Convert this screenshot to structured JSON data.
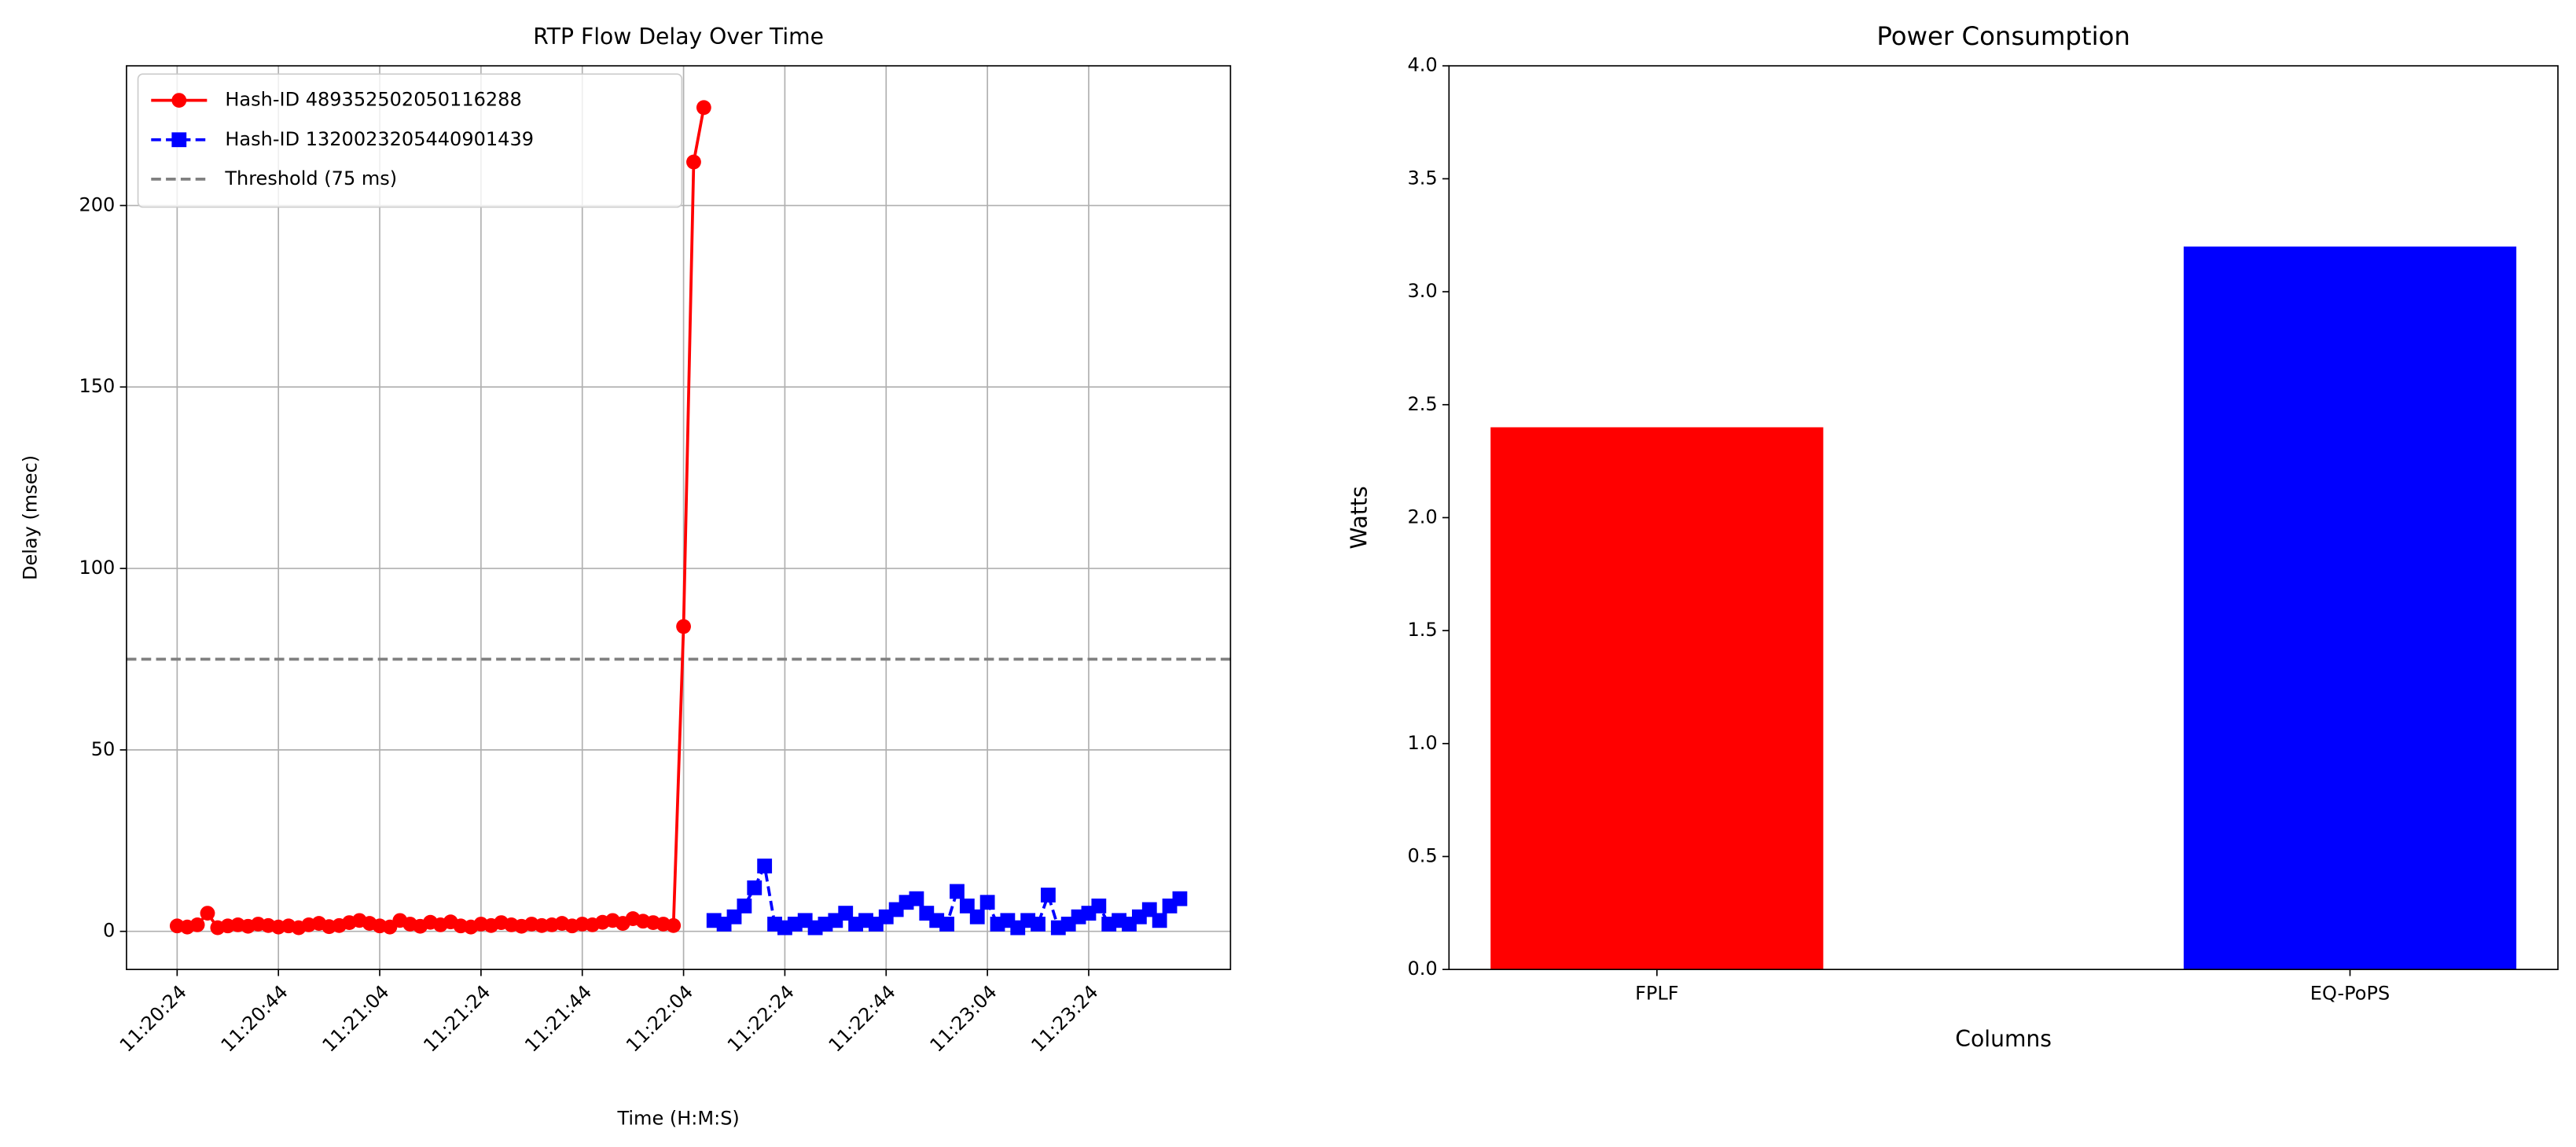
{
  "chart_data": [
    {
      "type": "line",
      "title": "RTP Flow Delay Over Time",
      "xlabel": "Time (H:M:S)",
      "ylabel": "Delay (msec)",
      "series": [
        {
          "name": "Hash-ID 489352502050116288",
          "color": "#ff0000",
          "marker": "circle",
          "linestyle": "solid",
          "x": [
            "11:20:24",
            "11:20:26",
            "11:20:28",
            "11:20:30",
            "11:20:32",
            "11:20:34",
            "11:20:36",
            "11:20:38",
            "11:20:40",
            "11:20:42",
            "11:20:44",
            "11:20:46",
            "11:20:48",
            "11:20:50",
            "11:20:52",
            "11:20:54",
            "11:20:56",
            "11:20:58",
            "11:21:00",
            "11:21:02",
            "11:21:04",
            "11:21:06",
            "11:21:08",
            "11:21:10",
            "11:21:12",
            "11:21:14",
            "11:21:16",
            "11:21:18",
            "11:21:20",
            "11:21:22",
            "11:21:24",
            "11:21:26",
            "11:21:28",
            "11:21:30",
            "11:21:32",
            "11:21:34",
            "11:21:36",
            "11:21:38",
            "11:21:40",
            "11:21:42",
            "11:21:44",
            "11:21:46",
            "11:21:48",
            "11:21:50",
            "11:21:52",
            "11:21:54",
            "11:21:56",
            "11:21:58",
            "11:22:00",
            "11:22:02",
            "11:22:04",
            "11:22:06",
            "11:22:08"
          ],
          "values": [
            1.5,
            1.2,
            1.8,
            5.0,
            1.0,
            1.5,
            1.8,
            1.4,
            2.0,
            1.6,
            1.2,
            1.5,
            1.0,
            1.8,
            2.2,
            1.3,
            1.6,
            2.4,
            3.0,
            2.2,
            1.5,
            1.2,
            3.0,
            2.0,
            1.4,
            2.5,
            1.8,
            2.6,
            1.5,
            1.2,
            2.0,
            1.6,
            2.4,
            1.8,
            1.4,
            2.0,
            1.6,
            1.8,
            2.2,
            1.5,
            2.0,
            1.8,
            2.5,
            3.0,
            2.2,
            3.5,
            2.8,
            2.4,
            2.0,
            1.6,
            84,
            212,
            227
          ]
        },
        {
          "name": "Hash-ID 1320023205440901439",
          "color": "#0000ff",
          "marker": "square",
          "linestyle": "dashed",
          "x": [
            "11:22:10",
            "11:22:12",
            "11:22:14",
            "11:22:16",
            "11:22:18",
            "11:22:20",
            "11:22:22",
            "11:22:24",
            "11:22:26",
            "11:22:28",
            "11:22:30",
            "11:22:32",
            "11:22:34",
            "11:22:36",
            "11:22:38",
            "11:22:40",
            "11:22:42",
            "11:22:44",
            "11:22:46",
            "11:22:48",
            "11:22:50",
            "11:22:52",
            "11:22:54",
            "11:22:56",
            "11:22:58",
            "11:23:00",
            "11:23:02",
            "11:23:04",
            "11:23:06",
            "11:23:08",
            "11:23:10",
            "11:23:12",
            "11:23:14",
            "11:23:16",
            "11:23:18",
            "11:23:20",
            "11:23:22",
            "11:23:24",
            "11:23:26",
            "11:23:28",
            "11:23:30",
            "11:23:32",
            "11:23:34",
            "11:23:36",
            "11:23:38",
            "11:23:40",
            "11:23:42"
          ],
          "values": [
            3,
            2,
            4,
            7,
            12,
            18,
            2,
            1,
            2,
            3,
            1,
            2,
            3,
            5,
            2,
            3,
            2,
            4,
            6,
            8,
            9,
            5,
            3,
            2,
            11,
            7,
            4,
            8,
            2,
            3,
            1,
            3,
            2,
            10,
            1,
            2,
            4,
            5,
            7,
            2,
            3,
            2,
            4,
            6,
            3,
            7,
            9
          ]
        }
      ],
      "threshold": {
        "value": 75,
        "label": "Threshold (75 ms)",
        "color": "#808080"
      },
      "xlim": [
        "11:20:14",
        "11:23:52"
      ],
      "xticks": [
        "11:20:24",
        "11:20:44",
        "11:21:04",
        "11:21:24",
        "11:21:44",
        "11:22:04",
        "11:22:24",
        "11:22:44",
        "11:23:04",
        "11:23:24"
      ],
      "ylim": [
        -10.5,
        238.5
      ],
      "yticks": [
        0,
        50,
        100,
        150,
        200
      ],
      "grid": true,
      "legend": "upper-left"
    },
    {
      "type": "bar",
      "title": "Power Consumption",
      "xlabel": "Columns",
      "ylabel": "Watts",
      "categories": [
        "FPLF",
        "EQ-PoPS"
      ],
      "values": [
        2.4,
        3.2
      ],
      "colors": [
        "#ff0000",
        "#0000ff"
      ],
      "ylim": [
        0,
        4
      ],
      "yticks": [
        {
          "value": 0,
          "label": "0.0"
        },
        0.5,
        {
          "value": 1,
          "label": "1.0"
        },
        1.5,
        {
          "value": 2,
          "label": "2.0"
        },
        2.5,
        {
          "value": 3,
          "label": "3.0"
        },
        3.5,
        {
          "value": 4,
          "label": "4.0"
        }
      ],
      "grid": false
    }
  ]
}
